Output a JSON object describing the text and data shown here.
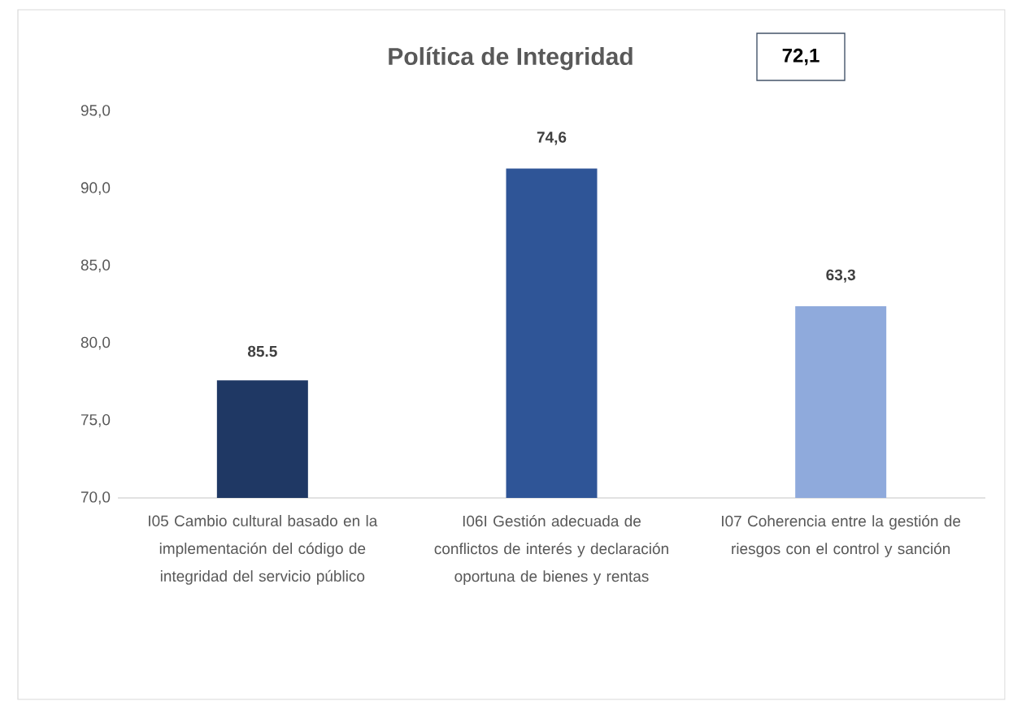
{
  "chart_data": {
    "type": "bar",
    "title": "Política de Integridad",
    "categories": [
      "I05 Cambio cultural basado en la implementación del código de integridad del servicio público",
      "I06I Gestión adecuada de conflictos de interés y declaración oportuna de bienes y rentas",
      "I07 Coherencia entre la gestión de riesgos con el control y sanción"
    ],
    "values": [
      77.6,
      91.3,
      82.4
    ],
    "colors": [
      "#1f3864",
      "#2f5597",
      "#8faadc"
    ],
    "annotations": [
      "72,1",
      "85.5",
      "74,6",
      "63,3"
    ],
    "ylim": [
      70,
      95
    ],
    "yticks": [
      {
        "value": 70,
        "label": "70,0"
      },
      {
        "value": 75,
        "label": "75,0"
      },
      {
        "value": 80,
        "label": "80,0"
      },
      {
        "value": 85,
        "label": "85,0"
      },
      {
        "value": 90,
        "label": "90,0"
      },
      {
        "value": 95,
        "label": "95,0"
      }
    ]
  }
}
